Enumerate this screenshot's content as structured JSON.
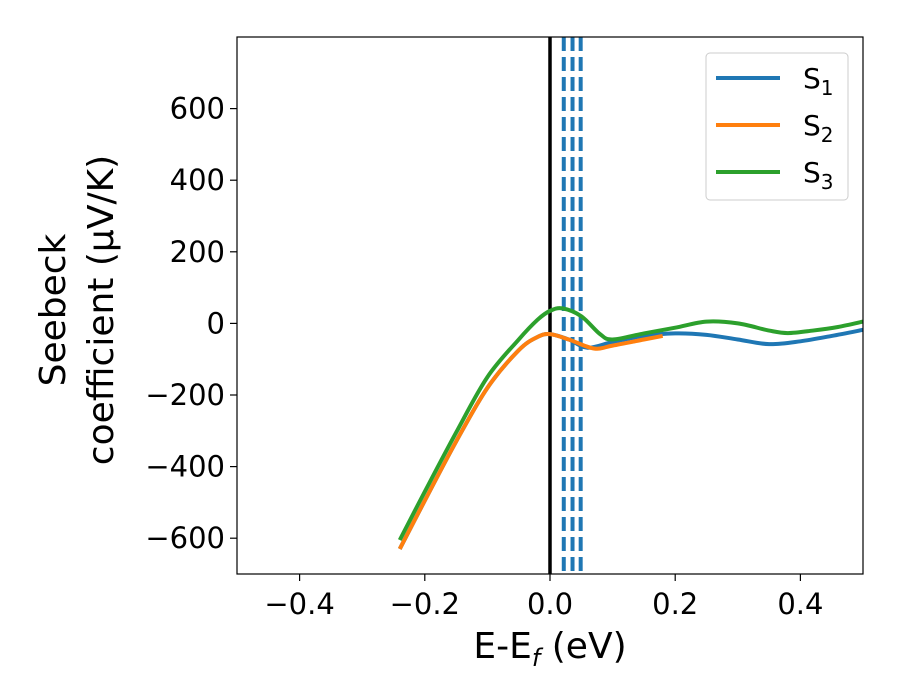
{
  "chart_data": {
    "type": "line",
    "xlabel": "E-E",
    "xlabel_sub": "f",
    "xlabel_unit": " (eV)",
    "ylabel_line1": "Seebeck",
    "ylabel_line2": "coefficient  (μV/K)",
    "xlim": [
      -0.5,
      0.5
    ],
    "ylim": [
      -700,
      800
    ],
    "xticks": [
      -0.4,
      -0.2,
      0.0,
      0.2,
      0.4
    ],
    "xtick_labels": [
      "−0.4",
      "−0.2",
      "0.0",
      "0.2",
      "0.4"
    ],
    "yticks": [
      -600,
      -400,
      -200,
      0,
      200,
      400,
      600
    ],
    "ytick_labels": [
      "−600",
      "−400",
      "−200",
      "0",
      "200",
      "400",
      "600"
    ],
    "grid": false,
    "legend_position": "top-right",
    "series": [
      {
        "name": "S",
        "name_sub": "1",
        "color": "#1f77b4",
        "x": [
          -0.24,
          -0.2,
          -0.15,
          -0.1,
          -0.05,
          -0.02,
          0.0,
          0.03,
          0.06,
          0.1,
          0.15,
          0.2,
          0.25,
          0.3,
          0.35,
          0.4,
          0.45,
          0.5
        ],
        "y": [
          -630,
          -495,
          -330,
          -180,
          -75,
          -38,
          -30,
          -45,
          -68,
          -52,
          -35,
          -28,
          -32,
          -45,
          -58,
          -50,
          -35,
          -18
        ]
      },
      {
        "name": "S",
        "name_sub": "2",
        "color": "#ff7f0e",
        "x": [
          -0.24,
          -0.2,
          -0.15,
          -0.1,
          -0.05,
          -0.02,
          0.0,
          0.03,
          0.07,
          0.1,
          0.15,
          0.18
        ],
        "y": [
          -630,
          -495,
          -330,
          -180,
          -75,
          -38,
          -30,
          -45,
          -70,
          -62,
          -45,
          -35
        ]
      },
      {
        "name": "S",
        "name_sub": "3",
        "color": "#2ca02c",
        "x": [
          -0.24,
          -0.2,
          -0.15,
          -0.1,
          -0.05,
          -0.02,
          0.0,
          0.02,
          0.05,
          0.08,
          0.1,
          0.15,
          0.2,
          0.25,
          0.3,
          0.35,
          0.38,
          0.42,
          0.46,
          0.5
        ],
        "y": [
          -605,
          -470,
          -305,
          -150,
          -45,
          10,
          35,
          42,
          20,
          -30,
          -45,
          -28,
          -12,
          5,
          0,
          -20,
          -27,
          -20,
          -10,
          5
        ]
      }
    ],
    "vlines": [
      {
        "x": 0.0,
        "color": "#000000",
        "style": "solid"
      },
      {
        "x": 0.022,
        "color": "#1f77b4",
        "style": "dashed"
      },
      {
        "x": 0.036,
        "color": "#1f77b4",
        "style": "dashed"
      },
      {
        "x": 0.049,
        "color": "#1f77b4",
        "style": "dashed"
      }
    ]
  }
}
